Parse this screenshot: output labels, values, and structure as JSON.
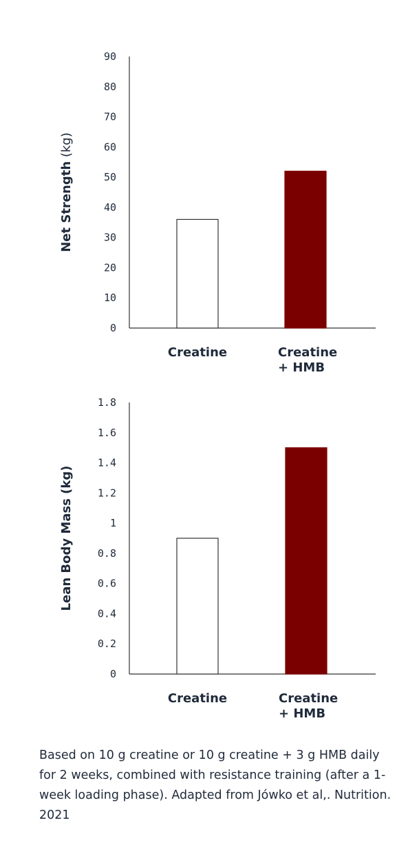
{
  "chart_data": [
    {
      "type": "bar",
      "title": "",
      "ylabel": "Net Strength",
      "ylabel_unit": "(kg)",
      "xlabel": "",
      "ylim": [
        0,
        90
      ],
      "yticks": [
        "0",
        "10",
        "20",
        "30",
        "40",
        "50",
        "60",
        "70",
        "80",
        "90"
      ],
      "categories": [
        [
          "Creatine"
        ],
        [
          "Creatine",
          "+ HMB"
        ]
      ],
      "values": [
        36,
        52
      ],
      "bar_fills": [
        "#ffffff",
        "#7a0000"
      ],
      "grid": false
    },
    {
      "type": "bar",
      "title": "",
      "ylabel": "Lean Body Mass (kg)",
      "ylabel_unit": "",
      "xlabel": "",
      "ylim": [
        0,
        1.8
      ],
      "yticks": [
        "0",
        "0.2",
        "0.4",
        "0.6",
        "0.8",
        "1",
        "1.2",
        "1.4",
        "1.6",
        "1.8"
      ],
      "categories": [
        [
          "Creatine"
        ],
        [
          "Creatine",
          "+ HMB"
        ]
      ],
      "values": [
        0.9,
        1.5
      ],
      "bar_fills": [
        "#ffffff",
        "#7a0000"
      ],
      "grid": false
    }
  ],
  "caption": "Based on 10 g creatine or 10 g creatine + 3 g HMB daily for 2 weeks, combined with resistance training (after a 1-week loading phase). Adapted from Jówko et al,. Nutrition. 2021",
  "colors": {
    "text": "#1f2a3a",
    "accent": "#7a0000",
    "axis": "#333333"
  }
}
